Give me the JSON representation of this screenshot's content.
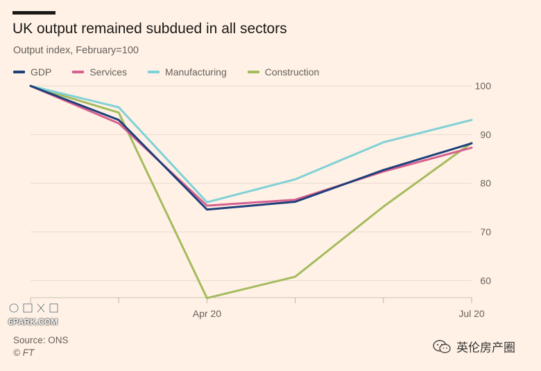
{
  "header": {
    "title": "UK output remained subdued in all sectors",
    "subtitle": "Output index, February=100"
  },
  "footer": {
    "source": "Source: ONS",
    "copyright": "© FT"
  },
  "watermarks": {
    "site": "6PARK.COM",
    "channel": "英伦房产圈",
    "channel_icon": "wechat-icon"
  },
  "chart_data": {
    "type": "line",
    "x": [
      "Feb 20",
      "Mar 20",
      "Apr 20",
      "May 20",
      "Jun 20",
      "Jul 20"
    ],
    "x_tick_labels": [
      "",
      "",
      "Apr 20",
      "",
      "",
      "Jul 20"
    ],
    "y_ticks": [
      60,
      70,
      80,
      90,
      100
    ],
    "ylim": [
      56.5,
      102
    ],
    "grid": true,
    "y_axis_side": "right",
    "legend_position": "top-left",
    "series": [
      {
        "name": "GDP",
        "color": "#1d3f7b",
        "values": [
          100,
          93,
          74.6,
          76.2,
          82.7,
          88.2
        ]
      },
      {
        "name": "Services",
        "color": "#d6608f",
        "values": [
          100,
          92.3,
          75.4,
          76.6,
          82.4,
          87.3
        ]
      },
      {
        "name": "Manufacturing",
        "color": "#7fd1d6",
        "values": [
          100,
          95.6,
          76.1,
          80.8,
          88.4,
          93
        ]
      },
      {
        "name": "Construction",
        "color": "#a4bb5e",
        "values": [
          100,
          94.5,
          56.4,
          60.8,
          75.2,
          88.3
        ]
      }
    ]
  }
}
